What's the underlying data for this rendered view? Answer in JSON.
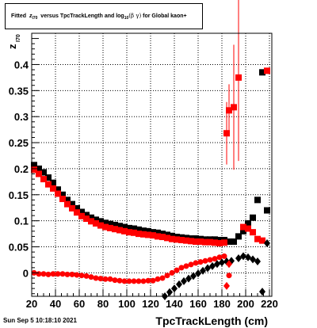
{
  "title": {
    "prefix": "Fitted",
    "z": "z",
    "z_sub": "I70",
    "middle": "versus TpcTrackLength and log",
    "log_sub": "10",
    "beta_gamma": "(β  γ)",
    "suffix": "for Global kaon+"
  },
  "datestamp": "Sun Sep  5 10:18:10 2021",
  "chart_data": {
    "type": "scatter",
    "xlabel": "TpcTrackLength (cm)",
    "ylabel": "z",
    "ylabel_sub": "I70",
    "xlim": [
      20,
      222
    ],
    "ylim": [
      -0.045,
      0.46
    ],
    "xticks": [
      20,
      40,
      60,
      80,
      100,
      120,
      140,
      160,
      180,
      200,
      220
    ],
    "yticks": [
      0,
      0.05,
      0.1,
      0.15,
      0.2,
      0.25,
      0.3,
      0.35,
      0.4
    ],
    "ytick_labels": [
      "0",
      "0.05",
      "0.1",
      "0.15",
      "0.2",
      "0.25",
      "0.3",
      "0.35",
      "0.4"
    ],
    "grid": true,
    "series": [
      {
        "color": "#000000",
        "marker": "square",
        "x": [
          22,
          26,
          30,
          34,
          38,
          42,
          46,
          50,
          54,
          58,
          62,
          66,
          70,
          74,
          78,
          82,
          86,
          90,
          94,
          98,
          102,
          106,
          110,
          114,
          118,
          122,
          126,
          130,
          134,
          138,
          142,
          146,
          150,
          154,
          158,
          162,
          166,
          170,
          174,
          178,
          182,
          186,
          190,
          194,
          198,
          202,
          206,
          210,
          214,
          218
        ],
        "y": [
          0.207,
          0.2,
          0.193,
          0.183,
          0.173,
          0.16,
          0.15,
          0.14,
          0.132,
          0.124,
          0.117,
          0.111,
          0.106,
          0.102,
          0.099,
          0.096,
          0.094,
          0.092,
          0.09,
          0.088,
          0.086,
          0.085,
          0.083,
          0.081,
          0.08,
          0.078,
          0.077,
          0.075,
          0.073,
          0.071,
          0.069,
          0.068,
          0.067,
          0.066,
          0.066,
          0.065,
          0.064,
          0.064,
          0.064,
          0.063,
          0.063,
          0.06,
          0.06,
          0.07,
          0.08,
          0.095,
          0.106,
          0.14,
          0.385,
          0.12
        ]
      },
      {
        "color": "#ff0000",
        "marker": "square",
        "x": [
          22,
          26,
          30,
          34,
          38,
          42,
          46,
          50,
          54,
          58,
          62,
          66,
          70,
          74,
          78,
          82,
          86,
          90,
          94,
          98,
          102,
          106,
          110,
          114,
          118,
          122,
          126,
          130,
          134,
          138,
          142,
          146,
          150,
          154,
          158,
          162,
          166,
          170,
          174,
          178,
          182,
          184,
          186,
          190,
          194,
          198,
          202,
          206,
          210,
          214,
          218
        ],
        "y": [
          0.198,
          0.19,
          0.18,
          0.17,
          0.162,
          0.152,
          0.142,
          0.132,
          0.124,
          0.116,
          0.109,
          0.104,
          0.099,
          0.095,
          0.091,
          0.088,
          0.086,
          0.084,
          0.082,
          0.08,
          0.078,
          0.077,
          0.075,
          0.074,
          0.073,
          0.072,
          0.07,
          0.069,
          0.067,
          0.065,
          0.064,
          0.063,
          0.062,
          0.061,
          0.06,
          0.06,
          0.059,
          0.059,
          0.058,
          0.057,
          0.058,
          0.268,
          0.312,
          0.318,
          0.375,
          0.088,
          0.085,
          0.078,
          0.065,
          0.062,
          0.388
        ],
        "err": [
          0,
          0,
          0,
          0,
          0,
          0,
          0,
          0,
          0,
          0,
          0,
          0,
          0,
          0,
          0,
          0,
          0,
          0,
          0,
          0,
          0,
          0,
          0,
          0,
          0,
          0,
          0,
          0,
          0,
          0,
          0,
          0,
          0,
          0,
          0,
          0,
          0,
          0,
          0,
          0,
          0,
          0.06,
          0.05,
          0.12,
          0.16,
          0,
          0,
          0,
          0,
          0,
          0
        ]
      },
      {
        "color": "#ff0000",
        "marker": "circle",
        "x": [
          22,
          26,
          30,
          34,
          38,
          42,
          46,
          50,
          54,
          58,
          62,
          66,
          70,
          74,
          78,
          82,
          86,
          90,
          94,
          98,
          102,
          106,
          110,
          114,
          118,
          122,
          126,
          130,
          134,
          138,
          142,
          146,
          150,
          154,
          158,
          162,
          166,
          170,
          174,
          178,
          182,
          186
        ],
        "y": [
          0.0,
          -0.002,
          -0.002,
          -0.003,
          -0.002,
          -0.002,
          -0.002,
          -0.003,
          -0.003,
          -0.004,
          -0.005,
          -0.006,
          -0.008,
          -0.01,
          -0.011,
          -0.012,
          -0.012,
          -0.014,
          -0.015,
          -0.016,
          -0.016,
          -0.016,
          -0.016,
          -0.016,
          -0.015,
          -0.015,
          -0.012,
          -0.01,
          -0.005,
          0.0,
          0.005,
          0.01,
          0.013,
          0.016,
          0.019,
          0.021,
          0.023,
          0.025,
          0.027,
          0.03,
          0.032,
          -0.005
        ]
      },
      {
        "color": "#000000",
        "marker": "diamond",
        "x": [
          132,
          136,
          140,
          144,
          148,
          152,
          156,
          160,
          164,
          168,
          172,
          176,
          180,
          184,
          188,
          194,
          198,
          202,
          206,
          210,
          214,
          218
        ],
        "y": [
          -0.045,
          -0.037,
          -0.03,
          -0.022,
          -0.016,
          -0.011,
          -0.006,
          -0.001,
          0.004,
          0.009,
          0.013,
          0.017,
          0.02,
          0.022,
          0.023,
          0.028,
          0.032,
          0.03,
          0.026,
          0.022,
          -0.036,
          0.057
        ]
      },
      {
        "color": "#ff0000",
        "marker": "diamond",
        "x": [
          184,
          186
        ],
        "y": [
          -0.025,
          0.017
        ]
      }
    ]
  }
}
